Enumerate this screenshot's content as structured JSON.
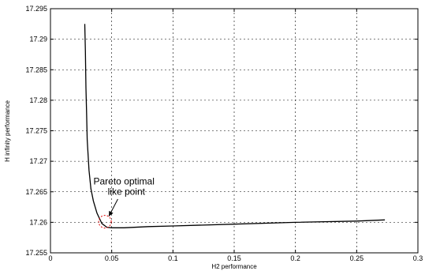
{
  "chart_data": {
    "type": "line",
    "xlabel": "H2 performance",
    "ylabel": "H infinity performance",
    "xlim": [
      0,
      0.3
    ],
    "ylim": [
      17.255,
      17.295
    ],
    "xticks": [
      "0",
      "0.05",
      "0.1",
      "0.15",
      "0.2",
      "0.25",
      "0.3"
    ],
    "yticks": [
      "17.255",
      "17.26",
      "17.265",
      "17.27",
      "17.275",
      "17.28",
      "17.285",
      "17.29",
      "17.295"
    ],
    "grid": true,
    "series": [
      {
        "x": [
          0.028,
          0.0285,
          0.029,
          0.0295,
          0.03,
          0.0315,
          0.033,
          0.035,
          0.038,
          0.042,
          0.046,
          0.05,
          0.06,
          0.08,
          0.1,
          0.15,
          0.2,
          0.25,
          0.273
        ],
        "y": [
          17.2925,
          17.288,
          17.282,
          17.278,
          17.2735,
          17.2685,
          17.2655,
          17.2635,
          17.2615,
          17.2598,
          17.2592,
          17.2591,
          17.2591,
          17.2593,
          17.2594,
          17.2597,
          17.26,
          17.2602,
          17.2604
        ]
      }
    ],
    "annotation": {
      "line1": "Pareto optimal",
      "line2": "like point",
      "point": [
        0.0445,
        17.2601
      ],
      "label_anchor": [
        0.055,
        17.2638
      ]
    }
  }
}
